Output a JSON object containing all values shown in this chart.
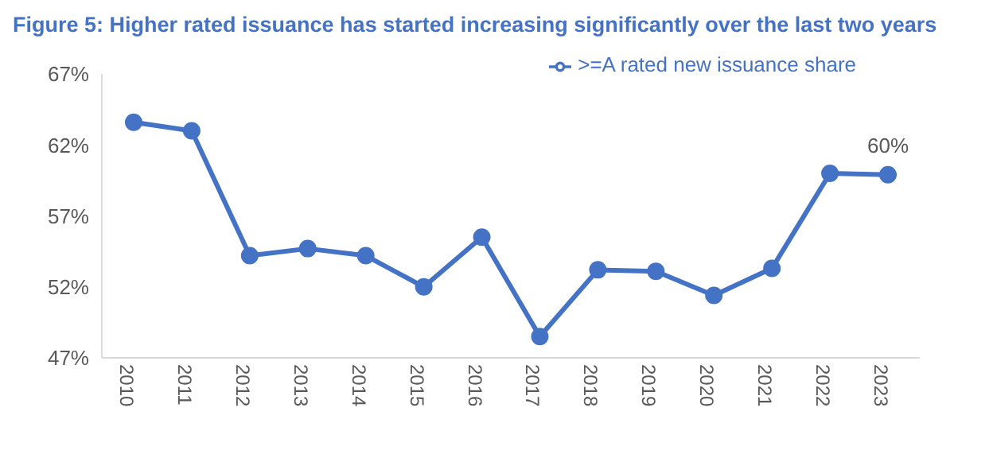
{
  "chart_data": {
    "type": "line",
    "title": "Figure 5: Higher rated issuance has started increasing significantly over the last two years",
    "categories": [
      "2010",
      "2011",
      "2012",
      "2013",
      "2014",
      "2015",
      "2016",
      "2017",
      "2018",
      "2019",
      "2020",
      "2021",
      "2022",
      "2023"
    ],
    "series": [
      {
        "name": ">=A rated new issuance share",
        "color": "#4472c4",
        "values": [
          63.6,
          63.0,
          54.2,
          54.7,
          54.2,
          52.0,
          55.5,
          48.5,
          53.2,
          53.1,
          51.4,
          53.3,
          60.0,
          59.9
        ],
        "value_labels": [
          null,
          null,
          null,
          null,
          null,
          null,
          null,
          null,
          null,
          null,
          null,
          null,
          null,
          "60%"
        ]
      }
    ],
    "ylim": [
      47,
      67
    ],
    "yticks": [
      {
        "value": 47,
        "label": "47%"
      },
      {
        "value": 52,
        "label": "52%"
      },
      {
        "value": 57,
        "label": "57%"
      },
      {
        "value": 62,
        "label": "62%"
      },
      {
        "value": 67,
        "label": "67%"
      }
    ],
    "grid": false,
    "legend": "top right",
    "marker": "circle",
    "line_style": "solid"
  }
}
